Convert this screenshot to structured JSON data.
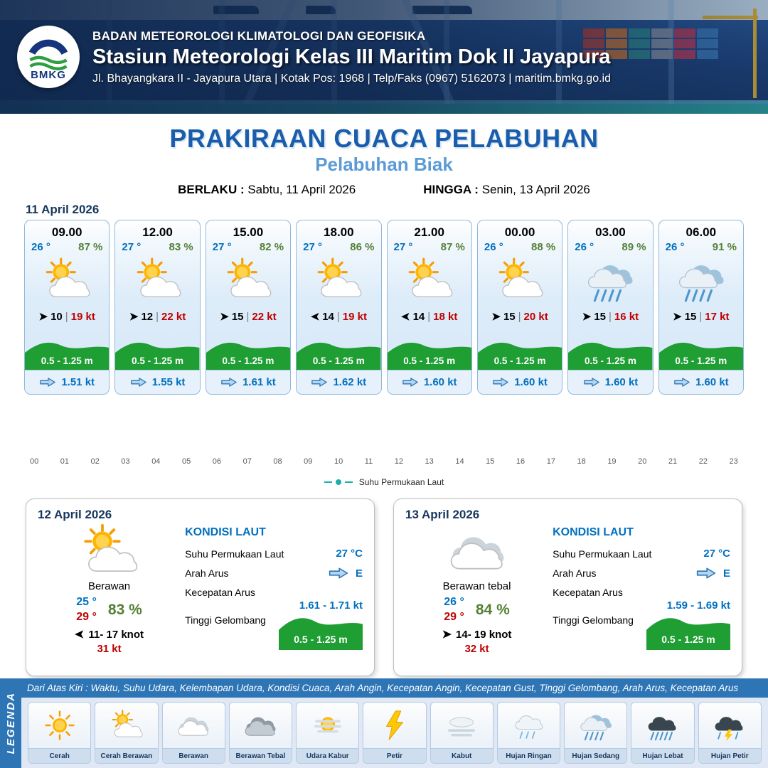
{
  "palette": {
    "accent_blue": "#1a5dab",
    "subtitle_blue": "#5b9bd5",
    "value_blue": "#0070c0",
    "humidity_green": "#538135",
    "gust_red": "#c00000",
    "wave_green": "#1e9e33",
    "legend_blue": "#2e75b6",
    "sst_teal": "#17b0a8"
  },
  "header": {
    "org": "BADAN METEOROLOGI KLIMATOLOGI DAN GEOFISIKA",
    "station": "Stasiun Meteorologi Kelas III Maritim Dok II Jayapura",
    "address": "Jl. Bhayangkara II - Jayapura Utara | Kotak Pos: 1968 | Telp/Faks (0967) 5162073 | maritim.bmkg.go.id",
    "logo_text": "BMKG"
  },
  "title": {
    "main": "PRAKIRAAN CUACA PELABUHAN",
    "subtitle": "Pelabuhan Biak",
    "berlaku_label": "BERLAKU :",
    "berlaku_value": "Sabtu, 11 April 2026",
    "hingga_label": "HINGGA :",
    "hingga_value": "Senin, 13 April 2026"
  },
  "forecast": {
    "date_label": "11 April 2026",
    "separator": "|",
    "cards": [
      {
        "time": "09.00",
        "temp": "26 °",
        "humidity": "87 %",
        "icon": "sun-cloud",
        "wind_arrow": "arrow-right",
        "wind": "10",
        "gust": "19 kt",
        "wave": "0.5 - 1.25 m",
        "current": "1.51 kt"
      },
      {
        "time": "12.00",
        "temp": "27 °",
        "humidity": "83 %",
        "icon": "sun-cloud",
        "wind_arrow": "arrow-right",
        "wind": "12",
        "gust": "22 kt",
        "wave": "0.5 - 1.25 m",
        "current": "1.55 kt"
      },
      {
        "time": "15.00",
        "temp": "27 °",
        "humidity": "82 %",
        "icon": "sun-cloud",
        "wind_arrow": "arrow-right",
        "wind": "15",
        "gust": "22 kt",
        "wave": "0.5 - 1.25 m",
        "current": "1.61 kt"
      },
      {
        "time": "18.00",
        "temp": "27 °",
        "humidity": "86 %",
        "icon": "sun-cloud",
        "wind_arrow": "arrow-left",
        "wind": "14",
        "gust": "19 kt",
        "wave": "0.5 - 1.25 m",
        "current": "1.62 kt"
      },
      {
        "time": "21.00",
        "temp": "27 °",
        "humidity": "87 %",
        "icon": "sun-cloud",
        "wind_arrow": "arrow-left",
        "wind": "14",
        "gust": "18 kt",
        "wave": "0.5 - 1.25 m",
        "current": "1.60 kt"
      },
      {
        "time": "00.00",
        "temp": "26 °",
        "humidity": "88 %",
        "icon": "sun-cloud",
        "wind_arrow": "arrow-right",
        "wind": "15",
        "gust": "20 kt",
        "wave": "0.5 - 1.25 m",
        "current": "1.60 kt"
      },
      {
        "time": "03.00",
        "temp": "26 °",
        "humidity": "89 %",
        "icon": "rain-medium",
        "wind_arrow": "arrow-right",
        "wind": "15",
        "gust": "16 kt",
        "wave": "0.5 - 1.25 m",
        "current": "1.60 kt"
      },
      {
        "time": "06.00",
        "temp": "26 °",
        "humidity": "91 %",
        "icon": "rain-medium",
        "wind_arrow": "arrow-right",
        "wind": "15",
        "gust": "17 kt",
        "wave": "0.5 - 1.25 m",
        "current": "1.60 kt"
      }
    ]
  },
  "chart": {
    "hours": [
      "00",
      "01",
      "02",
      "03",
      "04",
      "05",
      "06",
      "07",
      "08",
      "09",
      "10",
      "11",
      "12",
      "13",
      "14",
      "15",
      "16",
      "17",
      "18",
      "19",
      "20",
      "21",
      "22",
      "23"
    ],
    "legend": "Suhu Permukaan Laut"
  },
  "sea_labels": {
    "title": "KONDISI LAUT",
    "sst": "Suhu Permukaan Laut",
    "dir": "Arah Arus",
    "speed": "Kecepatan Arus",
    "wave": "Tinggi Gelombang"
  },
  "daily": [
    {
      "date": "12 April 2026",
      "icon": "sun-cloud",
      "condition": "Berawan",
      "temp_min": "25 °",
      "temp_max": "29 °",
      "humidity": "83 %",
      "wind_arrow": "arrow-left",
      "wind_range": "11- 17 knot",
      "gust": "31 kt",
      "sst": "27 °C",
      "current_dir": "E",
      "current_speed": "1.61 -  1.71 kt",
      "wave": "0.5 - 1.25 m"
    },
    {
      "date": "13 April 2026",
      "icon": "cloud",
      "condition": "Berawan tebal",
      "temp_min": "26 °",
      "temp_max": "29 °",
      "humidity": "84 %",
      "wind_arrow": "arrow-right",
      "wind_range": "14- 19 knot",
      "gust": "32 kt",
      "sst": "27 °C",
      "current_dir": "E",
      "current_speed": "1.59 - 1.69 kt",
      "wave": "0.5 - 1.25 m"
    }
  ],
  "legend_bar": {
    "legenda_label": "LEGENDA",
    "note": "Dari Atas Kiri : Waktu, Suhu Udara, Kelembapan Udara, Kondisi Cuaca, Arah Angin, Kecepatan Angin, Kecepatan Gust, Tinggi Gelombang, Arah Arus, Kecepatan Arus",
    "items": [
      {
        "label": "Cerah",
        "icon": "sun"
      },
      {
        "label": "Cerah Berawan",
        "icon": "sun-cloud"
      },
      {
        "label": "Berawan",
        "icon": "cloud"
      },
      {
        "label": "Berawan Tebal",
        "icon": "cloud-dark"
      },
      {
        "label": "Udara Kabur",
        "icon": "haze"
      },
      {
        "label": "Petir",
        "icon": "lightning"
      },
      {
        "label": "Kabut",
        "icon": "fog"
      },
      {
        "label": "Hujan Ringan",
        "icon": "rain-light"
      },
      {
        "label": "Hujan Sedang",
        "icon": "rain-medium"
      },
      {
        "label": "Hujan Lebat",
        "icon": "rain-heavy"
      },
      {
        "label": "Hujan Petir",
        "icon": "thunder-rain"
      }
    ]
  }
}
